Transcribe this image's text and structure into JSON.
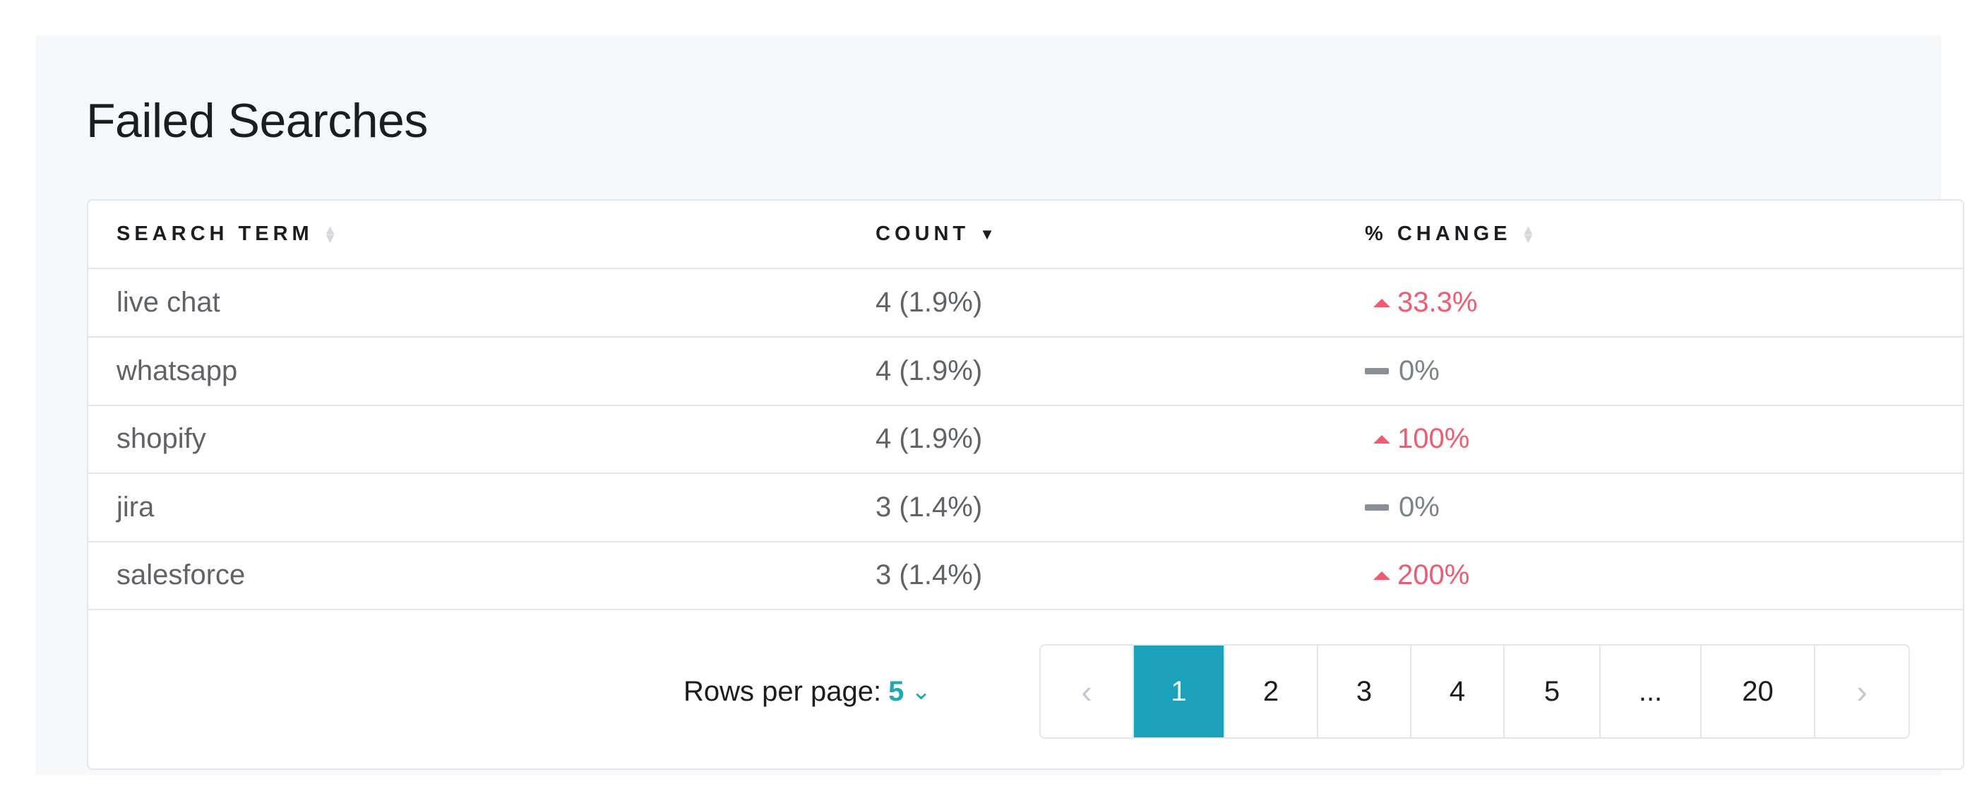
{
  "title": "Failed Searches",
  "colors": {
    "accent": "#1ca1bb",
    "increase": "#f25a72",
    "neutral": "#8a8f99"
  },
  "table": {
    "columns": [
      {
        "label": "SEARCH TERM",
        "sort": "none"
      },
      {
        "label": "COUNT",
        "sort": "descending"
      },
      {
        "label": "% CHANGE",
        "sort": "none"
      }
    ],
    "rows": [
      {
        "term": "live chat",
        "count": "4 (1.9%)",
        "change": "33.3%",
        "trend": "up"
      },
      {
        "term": "whatsapp",
        "count": "4 (1.9%)",
        "change": "0%",
        "trend": "flat"
      },
      {
        "term": "shopify",
        "count": "4 (1.9%)",
        "change": "100%",
        "trend": "up"
      },
      {
        "term": "jira",
        "count": "3 (1.4%)",
        "change": "0%",
        "trend": "flat"
      },
      {
        "term": "salesforce",
        "count": "3 (1.4%)",
        "change": "200%",
        "trend": "up"
      }
    ]
  },
  "footer": {
    "rows_per_page_label": "Rows per page:",
    "rows_per_page_value": "5",
    "pages": [
      "1",
      "2",
      "3",
      "4",
      "5",
      "...",
      "20"
    ],
    "current_page": "1"
  }
}
